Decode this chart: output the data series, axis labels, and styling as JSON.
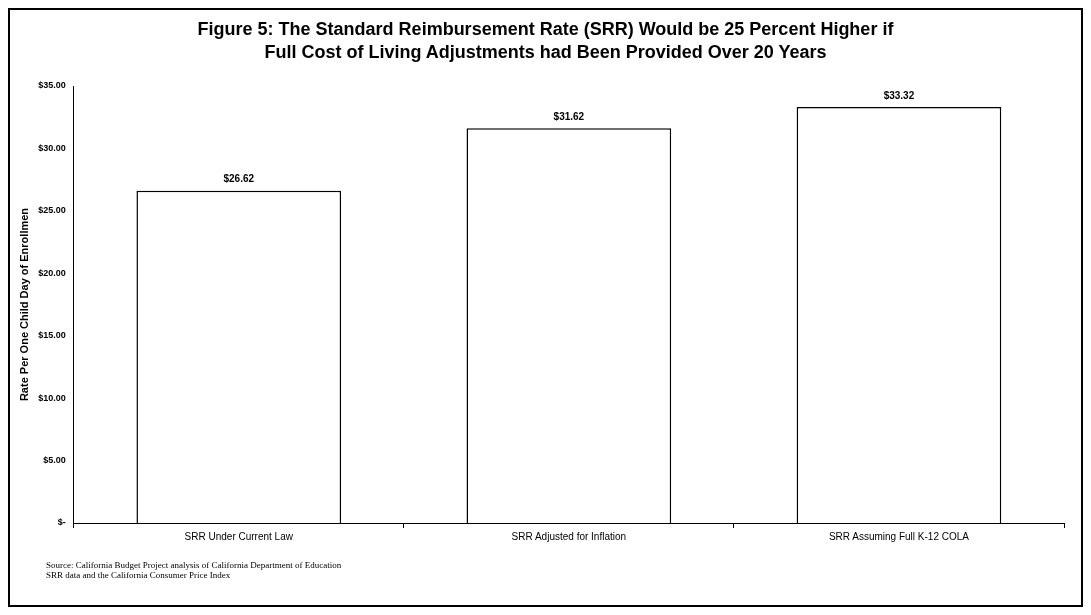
{
  "chart_data": {
    "type": "bar",
    "title": "Figure 5: The Standard Reimbursement Rate (SRR) Would be 25 Percent Higher if\nFull Cost of Living Adjustments had Been Provided Over 20 Years",
    "ylabel": "Rate Per One Child Day of Enrollmen",
    "categories": [
      "SRR Under Current Law",
      "SRR Adjusted for Inflation",
      "SRR Assuming Full K-12 COLA"
    ],
    "values": [
      26.62,
      31.62,
      33.32
    ],
    "value_labels": [
      "$26.62",
      "$31.62",
      "$33.32"
    ],
    "color": "#ffffff",
    "ylim": [
      0,
      35
    ],
    "yticks": [
      {
        "value": 0,
        "label": "$-"
      },
      {
        "value": 5,
        "label": "$5.00"
      },
      {
        "value": 10,
        "label": "$10.00"
      },
      {
        "value": 15,
        "label": "$15.00"
      },
      {
        "value": 20,
        "label": "$20.00"
      },
      {
        "value": 25,
        "label": "$25.00"
      },
      {
        "value": 30,
        "label": "$30.00"
      },
      {
        "value": 35,
        "label": "$35.00"
      }
    ],
    "annotations": [
      "Source: California Budget Project analysis of California Department of Education\nSRR data and the California Consumer Price Index"
    ]
  }
}
